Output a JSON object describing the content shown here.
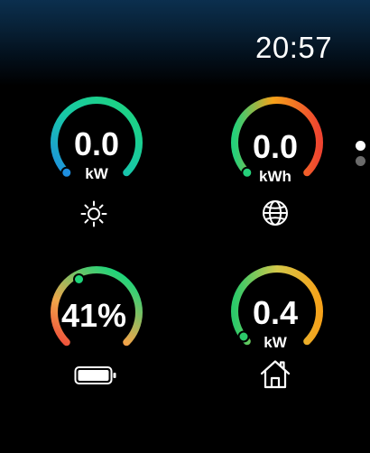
{
  "status_bar": {
    "time": "20:57"
  },
  "gauges": {
    "solar": {
      "value": "0.0",
      "unit": "kW",
      "icon": "sun-icon",
      "colors": [
        "#1e8fe0",
        "#18c8a8",
        "#1ed57a"
      ]
    },
    "grid": {
      "value": "0.0",
      "unit": "kWh",
      "icon": "globe-icon",
      "colors": [
        "#25d07a",
        "#f6a21a",
        "#ef4430"
      ]
    },
    "battery": {
      "value": "41%",
      "level": 0.41,
      "icon": "battery-icon",
      "colors": [
        "#ef4a3a",
        "#f0a64a",
        "#1ed57a"
      ]
    },
    "home": {
      "value": "0.4",
      "unit": "kW",
      "icon": "house-icon",
      "colors": [
        "#2cc96a",
        "#d4c84a",
        "#f6a21a"
      ]
    }
  },
  "pager": {
    "pages": 2,
    "active_page": 1,
    "active_color": "#ffffff",
    "inactive_color": "#6b6b6b"
  }
}
